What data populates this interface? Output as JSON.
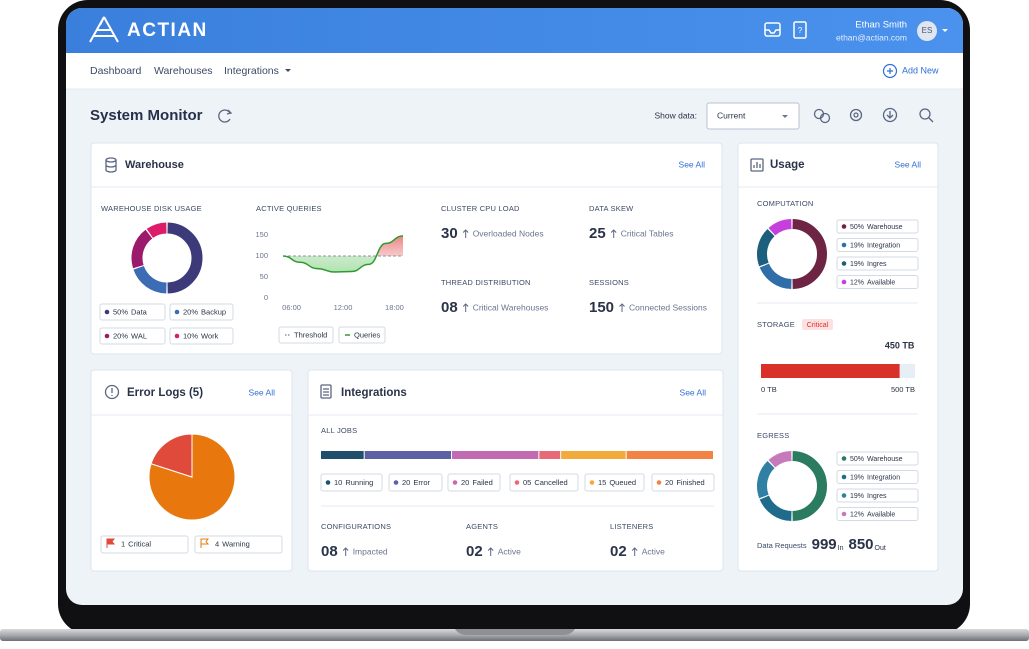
{
  "header": {
    "brand": "ACTIAN",
    "user_name": "Ethan Smith",
    "user_email": "ethan@actian.com",
    "user_initials": "ES"
  },
  "nav": {
    "links": [
      "Dashboard",
      "Warehouses",
      "Integrations"
    ],
    "add_new": "Add New"
  },
  "toolbar": {
    "title": "System Monitor",
    "show_data_label": "Show data:",
    "show_data_value": "Current"
  },
  "warehouse": {
    "title": "Warehouse",
    "see_all": "See All",
    "disk_usage": {
      "title": "WAREHOUSE DISK USAGE",
      "segments": [
        {
          "name": "Data",
          "value": 50,
          "label": "50%",
          "color": "#3d3a7a"
        },
        {
          "name": "Backup",
          "value": 20,
          "label": "20%",
          "color": "#3c6cb4"
        },
        {
          "name": "WAL",
          "value": 20,
          "label": "20%",
          "color": "#9c1a6c"
        },
        {
          "name": "Work",
          "value": 10,
          "label": "10%",
          "color": "#dc1c68"
        }
      ]
    },
    "active_queries": {
      "title": "ACTIVE QUERIES",
      "type": "line",
      "x": [
        5,
        7,
        9,
        11,
        13,
        15,
        17,
        19
      ],
      "values": [
        100,
        85,
        70,
        62,
        63,
        80,
        130,
        148
      ],
      "threshold": 100,
      "xlim": [
        5,
        19
      ],
      "ylim": [
        0,
        150
      ],
      "xticks": [
        {
          "value": 6,
          "label": "06:00"
        },
        {
          "value": 12,
          "label": "12:00"
        },
        {
          "value": 18,
          "label": "18:00"
        }
      ],
      "yticks": [
        0,
        50,
        100,
        150
      ],
      "legend": [
        "Threshold",
        "Queries"
      ],
      "line_color": "#2f9a2f"
    },
    "stats": [
      {
        "title": "CLUSTER CPU LOAD",
        "value": "30",
        "caption": "Overloaded Nodes"
      },
      {
        "title": "DATA SKEW",
        "value": "25",
        "caption": "Critical Tables"
      },
      {
        "title": "THREAD DISTRIBUTION",
        "value": "08",
        "caption": "Critical Warehouses"
      },
      {
        "title": "SESSIONS",
        "value": "150",
        "caption": "Connected Sessions"
      }
    ]
  },
  "error_logs": {
    "title": "Error Logs (5)",
    "see_all": "See All",
    "segments": [
      {
        "name": "Critical",
        "value": 1,
        "color": "#e04a3a"
      },
      {
        "name": "Warning",
        "value": 4,
        "color": "#e8780e"
      }
    ]
  },
  "integrations": {
    "title": "Integrations",
    "see_all": "See All",
    "all_jobs": {
      "title": "ALL JOBS",
      "segments": [
        {
          "name": "Running",
          "value": 10,
          "color": "#1f4f6b"
        },
        {
          "name": "Error",
          "value": 20,
          "color": "#5b61a3"
        },
        {
          "name": "Failed",
          "value": 20,
          "color": "#c26bb2"
        },
        {
          "name": "Cancelled",
          "value": 5,
          "label": "05",
          "color": "#e86a78"
        },
        {
          "name": "Queued",
          "value": 15,
          "color": "#f2ab3a"
        },
        {
          "name": "Finished",
          "value": 20,
          "color": "#f28345"
        }
      ]
    },
    "stats": [
      {
        "title": "CONFIGURATIONS",
        "value": "08",
        "caption": "Impacted"
      },
      {
        "title": "AGENTS",
        "value": "02",
        "caption": "Active"
      },
      {
        "title": "LISTENERS",
        "value": "02",
        "caption": "Active"
      }
    ]
  },
  "usage": {
    "title": "Usage",
    "see_all": "See All",
    "computation": {
      "title": "COMPUTATION",
      "segments": [
        {
          "name": "Warehouse",
          "value": 50,
          "label": "50%",
          "color": "#6e2443"
        },
        {
          "name": "Integration",
          "value": 19,
          "label": "19%",
          "color": "#2f6ea8"
        },
        {
          "name": "Ingres",
          "value": 19,
          "label": "19%",
          "color": "#1b5f7c"
        },
        {
          "name": "Available",
          "value": 12,
          "label": "12%",
          "color": "#c43fdc"
        }
      ]
    },
    "storage": {
      "title": "STORAGE",
      "status": "Critical",
      "used": {
        "value": 450,
        "label": "450 TB"
      },
      "min": {
        "value": 0,
        "label": "0 TB"
      },
      "max": {
        "value": 500,
        "label": "500 TB"
      },
      "color": "#d9302a"
    },
    "egress": {
      "title": "EGRESS",
      "segments": [
        {
          "name": "Warehouse",
          "value": 50,
          "label": "50%",
          "color": "#2a7b5f"
        },
        {
          "name": "Integration",
          "value": 19,
          "label": "19%",
          "color": "#1e6b8c"
        },
        {
          "name": "Ingres",
          "value": 19,
          "label": "19%",
          "color": "#2f80a2"
        },
        {
          "name": "Available",
          "value": 12,
          "label": "12%",
          "color": "#c77abb"
        }
      ]
    },
    "data_requests": {
      "label": "Data Requests",
      "in": {
        "value": "999",
        "unit": "In"
      },
      "out": {
        "value": "850",
        "unit": "Out"
      }
    }
  }
}
